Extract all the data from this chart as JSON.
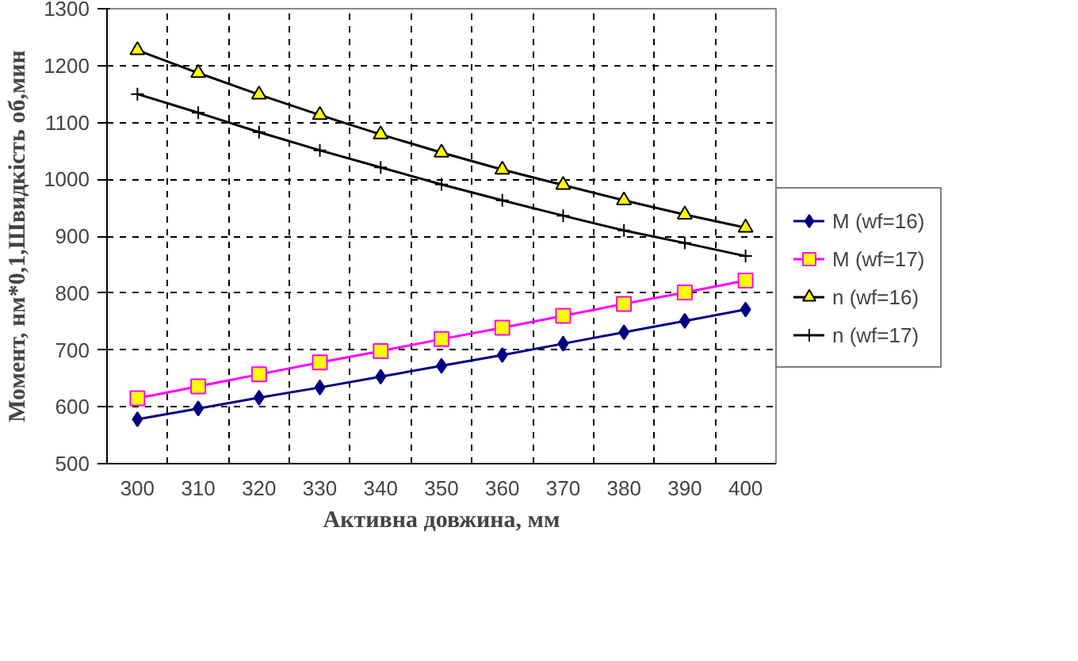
{
  "chart_data": {
    "type": "line",
    "xlabel": "Активна довжина, мм",
    "ylabel": "Момент, нм*0,1,Швидкість об,мин",
    "categories": [
      "300",
      "310",
      "320",
      "330",
      "340",
      "350",
      "360",
      "370",
      "380",
      "390",
      "400"
    ],
    "ylim": [
      500,
      1300
    ],
    "yticks": [
      500,
      600,
      700,
      800,
      900,
      1000,
      1100,
      1200,
      1300
    ],
    "grid": true,
    "legend": "right",
    "series": [
      {
        "name": "M (wf=16)",
        "color": "#000080",
        "marker": "diamond",
        "values": [
          578,
          597,
          616,
          634,
          653,
          672,
          691,
          711,
          731,
          751,
          771
        ]
      },
      {
        "name": "M (wf=17)",
        "color": "#ff00ff",
        "marker": "square",
        "values": [
          615,
          636,
          657,
          678,
          698,
          719,
          739,
          760,
          781,
          801,
          822
        ]
      },
      {
        "name": "n (wf=16)",
        "color": "#000000",
        "marker": "triangle",
        "values": [
          1227,
          1187,
          1149,
          1113,
          1079,
          1047,
          1017,
          990,
          963,
          938,
          915
        ]
      },
      {
        "name": "n (wf=17)",
        "color": "#000000",
        "marker": "cross",
        "values": [
          1150,
          1117,
          1083,
          1051,
          1021,
          991,
          963,
          936,
          910,
          888,
          865
        ]
      }
    ]
  }
}
